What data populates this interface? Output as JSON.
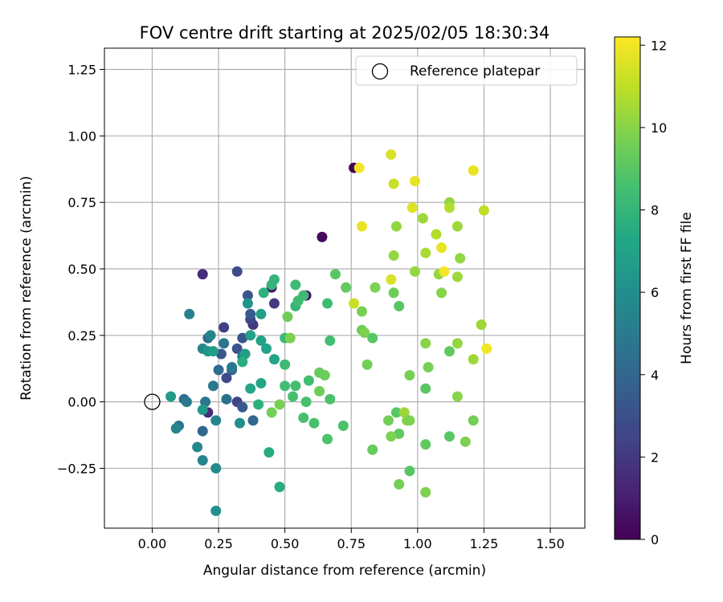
{
  "chart_data": {
    "type": "scatter",
    "title": "FOV centre drift starting at 2025/02/05 18:30:34",
    "xlabel": "Angular distance from reference (arcmin)",
    "ylabel": "Rotation from reference (arcmin)",
    "xlim": [
      -0.18,
      1.63
    ],
    "ylim": [
      -0.475,
      1.33
    ],
    "xticks": [
      0.0,
      0.25,
      0.5,
      0.75,
      1.0,
      1.25,
      1.5
    ],
    "xtick_labels": [
      "0.00",
      "0.25",
      "0.50",
      "0.75",
      "1.00",
      "1.25",
      "1.50"
    ],
    "yticks": [
      -0.25,
      0.0,
      0.25,
      0.5,
      0.75,
      1.0,
      1.25
    ],
    "ytick_labels": [
      "−0.25",
      "0.00",
      "0.25",
      "0.50",
      "0.75",
      "1.00",
      "1.25"
    ],
    "grid": true,
    "legend": {
      "placement": "upper-right",
      "entries": [
        {
          "label": "Reference platepar",
          "marker": "open-circle"
        }
      ]
    },
    "reference_point": {
      "x": 0.0,
      "y": 0.0
    },
    "colorbar": {
      "label": "Hours from first FF file",
      "colormap": "viridis",
      "range": [
        0,
        12.2
      ],
      "ticks": [
        0,
        2,
        4,
        6,
        8,
        10,
        12
      ],
      "tick_labels": [
        "0",
        "2",
        "4",
        "6",
        "8",
        "10",
        "12"
      ]
    },
    "points": [
      {
        "x": 0.76,
        "y": 0.88,
        "h": 0.1
      },
      {
        "x": 0.64,
        "y": 0.62,
        "h": 0.3
      },
      {
        "x": 0.45,
        "y": 0.43,
        "h": 0.5
      },
      {
        "x": 0.58,
        "y": 0.4,
        "h": 0.8
      },
      {
        "x": 0.19,
        "y": 0.48,
        "h": 1.5
      },
      {
        "x": 0.21,
        "y": -0.04,
        "h": 1.5
      },
      {
        "x": 0.46,
        "y": 0.37,
        "h": 2.0
      },
      {
        "x": 0.38,
        "y": 0.29,
        "h": 2.0
      },
      {
        "x": 0.27,
        "y": 0.28,
        "h": 2.3
      },
      {
        "x": 0.32,
        "y": 0.49,
        "h": 2.8
      },
      {
        "x": 0.37,
        "y": 0.31,
        "h": 2.5
      },
      {
        "x": 0.32,
        "y": 0.0,
        "h": 2.5
      },
      {
        "x": 0.28,
        "y": 0.09,
        "h": 2.8
      },
      {
        "x": 0.36,
        "y": 0.4,
        "h": 3.2
      },
      {
        "x": 0.34,
        "y": 0.24,
        "h": 3.2
      },
      {
        "x": 0.32,
        "y": 0.2,
        "h": 3.2
      },
      {
        "x": 0.26,
        "y": 0.18,
        "h": 3.3
      },
      {
        "x": 0.37,
        "y": 0.33,
        "h": 3.5
      },
      {
        "x": 0.34,
        "y": -0.02,
        "h": 3.5
      },
      {
        "x": 0.3,
        "y": 0.12,
        "h": 3.8
      },
      {
        "x": 0.38,
        "y": -0.07,
        "h": 4.0
      },
      {
        "x": 0.19,
        "y": -0.11,
        "h": 4.0
      },
      {
        "x": 0.21,
        "y": 0.24,
        "h": 4.3
      },
      {
        "x": 0.12,
        "y": 0.01,
        "h": 4.3
      },
      {
        "x": 0.25,
        "y": 0.12,
        "h": 4.3
      },
      {
        "x": 0.28,
        "y": 0.01,
        "h": 4.5
      },
      {
        "x": 0.27,
        "y": 0.22,
        "h": 4.8
      },
      {
        "x": 0.1,
        "y": -0.09,
        "h": 4.8
      },
      {
        "x": 0.2,
        "y": 0.0,
        "h": 4.8
      },
      {
        "x": 0.13,
        "y": 0.0,
        "h": 5.0
      },
      {
        "x": 0.3,
        "y": 0.13,
        "h": 5.0
      },
      {
        "x": 0.23,
        "y": 0.06,
        "h": 5.0
      },
      {
        "x": 0.34,
        "y": 0.17,
        "h": 5.2
      },
      {
        "x": 0.14,
        "y": 0.33,
        "h": 5.3
      },
      {
        "x": 0.22,
        "y": 0.25,
        "h": 5.5
      },
      {
        "x": 0.19,
        "y": 0.2,
        "h": 5.5
      },
      {
        "x": 0.24,
        "y": -0.07,
        "h": 5.5
      },
      {
        "x": 0.19,
        "y": -0.22,
        "h": 5.5
      },
      {
        "x": 0.09,
        "y": -0.1,
        "h": 5.5
      },
      {
        "x": 0.17,
        "y": -0.17,
        "h": 5.6
      },
      {
        "x": 0.24,
        "y": -0.25,
        "h": 5.8
      },
      {
        "x": 0.24,
        "y": -0.41,
        "h": 6.0
      },
      {
        "x": 0.33,
        "y": -0.08,
        "h": 6.0
      },
      {
        "x": 0.36,
        "y": 0.37,
        "h": 6.2
      },
      {
        "x": 0.21,
        "y": 0.19,
        "h": 6.2
      },
      {
        "x": 0.07,
        "y": 0.02,
        "h": 6.5
      },
      {
        "x": 0.19,
        "y": -0.03,
        "h": 6.5
      },
      {
        "x": 0.23,
        "y": 0.19,
        "h": 6.8
      },
      {
        "x": 0.35,
        "y": 0.18,
        "h": 6.8
      },
      {
        "x": 0.41,
        "y": 0.33,
        "h": 6.8
      },
      {
        "x": 0.41,
        "y": 0.23,
        "h": 7.0
      },
      {
        "x": 0.37,
        "y": 0.25,
        "h": 7.0
      },
      {
        "x": 0.43,
        "y": 0.2,
        "h": 7.0
      },
      {
        "x": 0.46,
        "y": 0.16,
        "h": 7.2
      },
      {
        "x": 0.41,
        "y": 0.07,
        "h": 7.2
      },
      {
        "x": 0.37,
        "y": 0.05,
        "h": 7.2
      },
      {
        "x": 0.44,
        "y": -0.19,
        "h": 7.5
      },
      {
        "x": 0.48,
        "y": -0.32,
        "h": 7.5
      },
      {
        "x": 0.34,
        "y": 0.15,
        "h": 7.6
      },
      {
        "x": 0.42,
        "y": 0.41,
        "h": 7.8
      },
      {
        "x": 0.4,
        "y": -0.01,
        "h": 7.8
      },
      {
        "x": 0.45,
        "y": 0.44,
        "h": 8.0
      },
      {
        "x": 0.46,
        "y": 0.46,
        "h": 8.0
      },
      {
        "x": 0.54,
        "y": 0.36,
        "h": 8.0
      },
      {
        "x": 0.5,
        "y": 0.24,
        "h": 8.2
      },
      {
        "x": 0.5,
        "y": 0.14,
        "h": 8.3
      },
      {
        "x": 0.54,
        "y": 0.44,
        "h": 8.3
      },
      {
        "x": 0.57,
        "y": 0.4,
        "h": 8.3
      },
      {
        "x": 0.55,
        "y": 0.38,
        "h": 8.4
      },
      {
        "x": 0.66,
        "y": 0.37,
        "h": 8.4
      },
      {
        "x": 0.67,
        "y": 0.23,
        "h": 8.5
      },
      {
        "x": 0.59,
        "y": 0.08,
        "h": 8.5
      },
      {
        "x": 0.54,
        "y": 0.06,
        "h": 8.5
      },
      {
        "x": 0.5,
        "y": 0.06,
        "h": 8.5
      },
      {
        "x": 0.53,
        "y": 0.02,
        "h": 8.6
      },
      {
        "x": 0.58,
        "y": 0.0,
        "h": 8.6
      },
      {
        "x": 0.57,
        "y": -0.06,
        "h": 8.6
      },
      {
        "x": 0.61,
        "y": -0.08,
        "h": 8.6
      },
      {
        "x": 0.67,
        "y": 0.01,
        "h": 8.7
      },
      {
        "x": 0.66,
        "y": -0.14,
        "h": 8.7
      },
      {
        "x": 0.72,
        "y": -0.09,
        "h": 8.7
      },
      {
        "x": 0.69,
        "y": 0.48,
        "h": 9.0
      },
      {
        "x": 0.73,
        "y": 0.43,
        "h": 9.2
      },
      {
        "x": 0.83,
        "y": -0.18,
        "h": 9.3
      },
      {
        "x": 0.63,
        "y": 0.11,
        "h": 9.3
      },
      {
        "x": 0.65,
        "y": 0.1,
        "h": 9.4
      },
      {
        "x": 0.63,
        "y": 0.04,
        "h": 9.5
      },
      {
        "x": 0.45,
        "y": -0.04,
        "h": 9.6
      },
      {
        "x": 0.48,
        "y": -0.01,
        "h": 9.7
      },
      {
        "x": 0.52,
        "y": 0.24,
        "h": 9.8
      },
      {
        "x": 0.51,
        "y": 0.32,
        "h": 9.5
      },
      {
        "x": 0.79,
        "y": 0.27,
        "h": 9.5
      },
      {
        "x": 0.8,
        "y": 0.26,
        "h": 9.8
      },
      {
        "x": 0.79,
        "y": 0.34,
        "h": 9.7
      },
      {
        "x": 0.83,
        "y": 0.24,
        "h": 9.0
      },
      {
        "x": 0.81,
        "y": 0.14,
        "h": 9.6
      },
      {
        "x": 0.84,
        "y": 0.43,
        "h": 9.8
      },
      {
        "x": 0.91,
        "y": 0.41,
        "h": 9.5
      },
      {
        "x": 0.93,
        "y": 0.36,
        "h": 9.0
      },
      {
        "x": 0.92,
        "y": 0.66,
        "h": 10.2
      },
      {
        "x": 0.91,
        "y": 0.55,
        "h": 10.2
      },
      {
        "x": 0.92,
        "y": -0.04,
        "h": 9.0
      },
      {
        "x": 0.93,
        "y": -0.12,
        "h": 9.2
      },
      {
        "x": 0.89,
        "y": -0.07,
        "h": 9.6
      },
      {
        "x": 0.9,
        "y": -0.13,
        "h": 9.8
      },
      {
        "x": 0.95,
        "y": -0.04,
        "h": 10.4
      },
      {
        "x": 0.96,
        "y": -0.07,
        "h": 10.0
      },
      {
        "x": 0.97,
        "y": -0.07,
        "h": 9.8
      },
      {
        "x": 0.97,
        "y": 0.1,
        "h": 9.7
      },
      {
        "x": 0.93,
        "y": -0.31,
        "h": 9.6
      },
      {
        "x": 0.97,
        "y": -0.26,
        "h": 9.0
      },
      {
        "x": 1.03,
        "y": -0.16,
        "h": 9.2
      },
      {
        "x": 1.03,
        "y": -0.34,
        "h": 9.8
      },
      {
        "x": 1.03,
        "y": 0.05,
        "h": 9.0
      },
      {
        "x": 1.04,
        "y": 0.13,
        "h": 9.6
      },
      {
        "x": 1.03,
        "y": 0.22,
        "h": 10.0
      },
      {
        "x": 0.99,
        "y": 0.49,
        "h": 10.2
      },
      {
        "x": 1.02,
        "y": 0.69,
        "h": 10.4
      },
      {
        "x": 1.03,
        "y": 0.56,
        "h": 10.6
      },
      {
        "x": 1.07,
        "y": 0.63,
        "h": 10.8
      },
      {
        "x": 1.08,
        "y": 0.48,
        "h": 10.2
      },
      {
        "x": 1.09,
        "y": 0.41,
        "h": 10.0
      },
      {
        "x": 1.12,
        "y": 0.19,
        "h": 9.2
      },
      {
        "x": 1.12,
        "y": -0.13,
        "h": 9.0
      },
      {
        "x": 1.15,
        "y": 0.02,
        "h": 10.0
      },
      {
        "x": 1.15,
        "y": 0.22,
        "h": 10.2
      },
      {
        "x": 1.16,
        "y": 0.54,
        "h": 10.2
      },
      {
        "x": 1.15,
        "y": 0.47,
        "h": 10.4
      },
      {
        "x": 1.15,
        "y": 0.66,
        "h": 10.4
      },
      {
        "x": 1.12,
        "y": 0.75,
        "h": 10.2
      },
      {
        "x": 1.12,
        "y": 0.73,
        "h": 10.8
      },
      {
        "x": 1.18,
        "y": -0.15,
        "h": 9.8
      },
      {
        "x": 1.21,
        "y": 0.16,
        "h": 10.4
      },
      {
        "x": 1.21,
        "y": -0.07,
        "h": 9.6
      },
      {
        "x": 1.24,
        "y": 0.29,
        "h": 10.4
      },
      {
        "x": 1.25,
        "y": 0.72,
        "h": 11.0
      },
      {
        "x": 1.21,
        "y": 0.87,
        "h": 11.8
      },
      {
        "x": 1.26,
        "y": 0.2,
        "h": 12.0
      },
      {
        "x": 1.1,
        "y": 0.49,
        "h": 12.0
      },
      {
        "x": 1.09,
        "y": 0.58,
        "h": 11.8
      },
      {
        "x": 0.98,
        "y": 0.73,
        "h": 11.6
      },
      {
        "x": 0.99,
        "y": 0.83,
        "h": 11.8
      },
      {
        "x": 0.91,
        "y": 0.82,
        "h": 11.2
      },
      {
        "x": 0.9,
        "y": 0.93,
        "h": 11.5
      },
      {
        "x": 0.78,
        "y": 0.88,
        "h": 12.0
      },
      {
        "x": 0.79,
        "y": 0.66,
        "h": 11.8
      },
      {
        "x": 0.76,
        "y": 0.37,
        "h": 11.2
      },
      {
        "x": 0.9,
        "y": 0.46,
        "h": 11.5
      }
    ]
  }
}
